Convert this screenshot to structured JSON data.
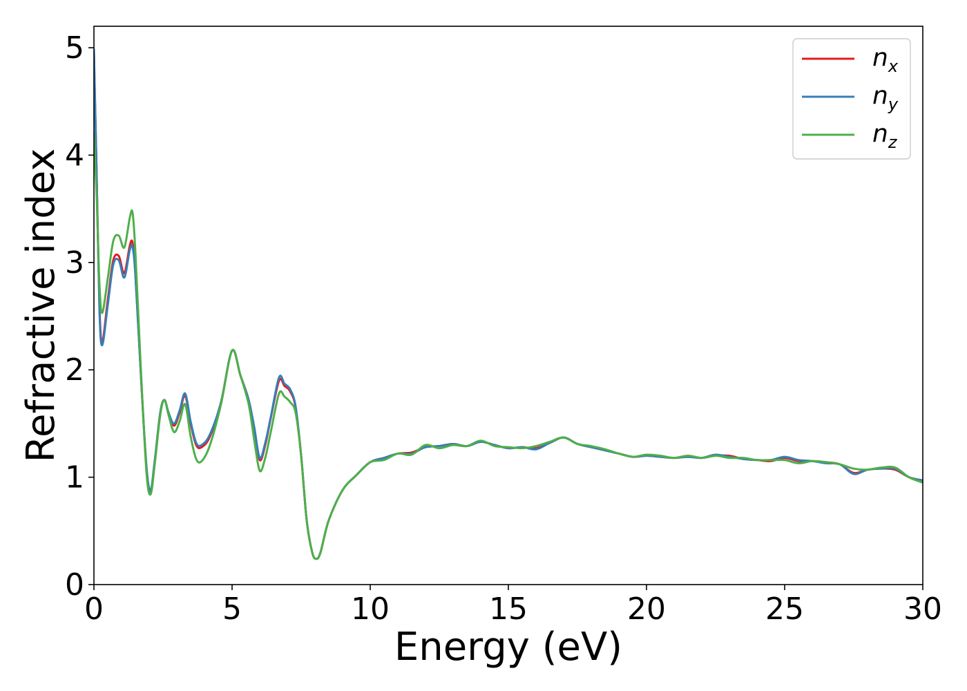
{
  "chart_data": {
    "type": "line",
    "xlabel": "Energy (eV)",
    "ylabel": "Refractive index",
    "xlim": [
      0,
      30
    ],
    "ylim": [
      0,
      5.2
    ],
    "xticks": [
      0,
      5,
      10,
      15,
      20,
      25,
      30
    ],
    "yticks": [
      0,
      1,
      2,
      3,
      4,
      5
    ],
    "grid": false,
    "legend_position": "top-right",
    "series": [
      {
        "name": "n_x",
        "label_base": "n",
        "label_sub": "x",
        "color": "#e41a1c",
        "x": [
          0,
          0.1,
          0.2,
          0.3,
          0.5,
          0.7,
          0.9,
          1.1,
          1.3,
          1.4,
          1.5,
          1.7,
          1.9,
          2.05,
          2.2,
          2.4,
          2.55,
          2.7,
          2.9,
          3.1,
          3.3,
          3.5,
          3.7,
          3.9,
          4.2,
          4.6,
          5.0,
          5.3,
          5.6,
          5.8,
          6.0,
          6.2,
          6.4,
          6.7,
          6.9,
          7.1,
          7.3,
          7.5,
          7.7,
          7.9,
          8.05,
          8.2,
          8.5,
          9.0,
          9.5,
          10.0,
          10.5,
          11.0,
          11.5,
          12.0,
          12.5,
          13.0,
          13.5,
          14.0,
          14.5,
          15.0,
          15.5,
          16.0,
          16.5,
          17.0,
          17.5,
          18.0,
          18.5,
          19.0,
          19.5,
          20.0,
          20.5,
          21.0,
          21.5,
          22.0,
          22.5,
          23.0,
          23.5,
          24.0,
          24.5,
          25.0,
          25.5,
          26.0,
          26.5,
          27.0,
          27.5,
          28.0,
          28.5,
          29.0,
          29.5,
          30.0
        ],
        "y": [
          4.95,
          3.8,
          2.6,
          2.26,
          2.65,
          3.02,
          3.06,
          2.9,
          3.16,
          3.18,
          2.9,
          1.95,
          1.1,
          0.87,
          1.15,
          1.6,
          1.72,
          1.6,
          1.48,
          1.6,
          1.76,
          1.5,
          1.3,
          1.28,
          1.38,
          1.7,
          2.18,
          1.95,
          1.72,
          1.45,
          1.16,
          1.3,
          1.55,
          1.9,
          1.85,
          1.8,
          1.65,
          1.2,
          0.6,
          0.3,
          0.24,
          0.3,
          0.6,
          0.88,
          1.02,
          1.14,
          1.18,
          1.22,
          1.23,
          1.28,
          1.29,
          1.31,
          1.29,
          1.33,
          1.3,
          1.27,
          1.28,
          1.27,
          1.32,
          1.37,
          1.31,
          1.28,
          1.25,
          1.22,
          1.19,
          1.2,
          1.19,
          1.18,
          1.19,
          1.18,
          1.2,
          1.2,
          1.17,
          1.16,
          1.15,
          1.18,
          1.15,
          1.15,
          1.14,
          1.12,
          1.04,
          1.07,
          1.08,
          1.07,
          1.0,
          0.97
        ]
      },
      {
        "name": "n_y",
        "label_base": "n",
        "label_sub": "y",
        "color": "#377eb8",
        "x": [
          0,
          0.1,
          0.2,
          0.3,
          0.5,
          0.7,
          0.9,
          1.1,
          1.3,
          1.4,
          1.5,
          1.7,
          1.9,
          2.05,
          2.2,
          2.4,
          2.55,
          2.7,
          2.9,
          3.1,
          3.3,
          3.5,
          3.7,
          3.9,
          4.2,
          4.6,
          5.0,
          5.3,
          5.6,
          5.8,
          6.0,
          6.2,
          6.4,
          6.7,
          6.9,
          7.1,
          7.3,
          7.5,
          7.7,
          7.9,
          8.05,
          8.2,
          8.5,
          9.0,
          9.5,
          10.0,
          10.5,
          11.0,
          11.5,
          12.0,
          12.5,
          13.0,
          13.5,
          14.0,
          14.5,
          15.0,
          15.5,
          16.0,
          16.5,
          17.0,
          17.5,
          18.0,
          18.5,
          19.0,
          19.5,
          20.0,
          20.5,
          21.0,
          21.5,
          22.0,
          22.5,
          23.0,
          23.5,
          24.0,
          24.5,
          25.0,
          25.5,
          26.0,
          26.5,
          27.0,
          27.5,
          28.0,
          28.5,
          29.0,
          29.5,
          30.0
        ],
        "y": [
          4.98,
          3.8,
          2.55,
          2.23,
          2.6,
          2.98,
          3.02,
          2.86,
          3.12,
          3.14,
          2.88,
          1.95,
          1.1,
          0.88,
          1.15,
          1.6,
          1.72,
          1.6,
          1.5,
          1.62,
          1.78,
          1.52,
          1.32,
          1.3,
          1.4,
          1.7,
          2.18,
          1.95,
          1.72,
          1.47,
          1.18,
          1.32,
          1.56,
          1.93,
          1.87,
          1.82,
          1.66,
          1.2,
          0.6,
          0.3,
          0.24,
          0.3,
          0.6,
          0.88,
          1.02,
          1.14,
          1.18,
          1.22,
          1.22,
          1.28,
          1.29,
          1.31,
          1.29,
          1.33,
          1.3,
          1.27,
          1.28,
          1.26,
          1.32,
          1.37,
          1.31,
          1.28,
          1.25,
          1.22,
          1.19,
          1.2,
          1.19,
          1.18,
          1.19,
          1.18,
          1.21,
          1.19,
          1.17,
          1.16,
          1.16,
          1.19,
          1.16,
          1.15,
          1.13,
          1.12,
          1.03,
          1.07,
          1.08,
          1.08,
          1.0,
          0.97
        ]
      },
      {
        "name": "n_z",
        "label_base": "n",
        "label_sub": "z",
        "color": "#4daf4a",
        "x": [
          0,
          0.1,
          0.2,
          0.3,
          0.5,
          0.7,
          0.9,
          1.1,
          1.3,
          1.4,
          1.5,
          1.7,
          1.9,
          2.05,
          2.2,
          2.4,
          2.55,
          2.7,
          2.9,
          3.1,
          3.3,
          3.5,
          3.7,
          3.9,
          4.2,
          4.6,
          5.0,
          5.3,
          5.6,
          5.8,
          6.0,
          6.2,
          6.4,
          6.7,
          6.9,
          7.1,
          7.3,
          7.5,
          7.7,
          7.9,
          8.05,
          8.2,
          8.5,
          9.0,
          9.5,
          10.0,
          10.5,
          11.0,
          11.5,
          12.0,
          12.5,
          13.0,
          13.5,
          14.0,
          14.5,
          15.0,
          15.5,
          16.0,
          16.5,
          17.0,
          17.5,
          18.0,
          18.5,
          19.0,
          19.5,
          20.0,
          20.5,
          21.0,
          21.5,
          22.0,
          22.5,
          23.0,
          23.5,
          24.0,
          24.5,
          25.0,
          25.5,
          26.0,
          26.5,
          27.0,
          27.5,
          28.0,
          28.5,
          29.0,
          29.5,
          30.0
        ],
        "y": [
          4.2,
          3.6,
          2.8,
          2.53,
          2.85,
          3.2,
          3.25,
          3.14,
          3.42,
          3.46,
          3.1,
          2.0,
          1.05,
          0.84,
          1.12,
          1.58,
          1.72,
          1.58,
          1.42,
          1.52,
          1.68,
          1.38,
          1.17,
          1.15,
          1.3,
          1.68,
          2.18,
          1.95,
          1.68,
          1.35,
          1.06,
          1.18,
          1.42,
          1.78,
          1.75,
          1.7,
          1.6,
          1.2,
          0.6,
          0.3,
          0.24,
          0.3,
          0.6,
          0.88,
          1.02,
          1.14,
          1.16,
          1.22,
          1.21,
          1.3,
          1.27,
          1.3,
          1.29,
          1.34,
          1.29,
          1.28,
          1.27,
          1.29,
          1.33,
          1.37,
          1.31,
          1.29,
          1.26,
          1.22,
          1.19,
          1.21,
          1.2,
          1.18,
          1.2,
          1.18,
          1.2,
          1.18,
          1.18,
          1.16,
          1.16,
          1.16,
          1.13,
          1.15,
          1.14,
          1.12,
          1.08,
          1.07,
          1.09,
          1.09,
          1.0,
          0.95
        ]
      }
    ]
  }
}
